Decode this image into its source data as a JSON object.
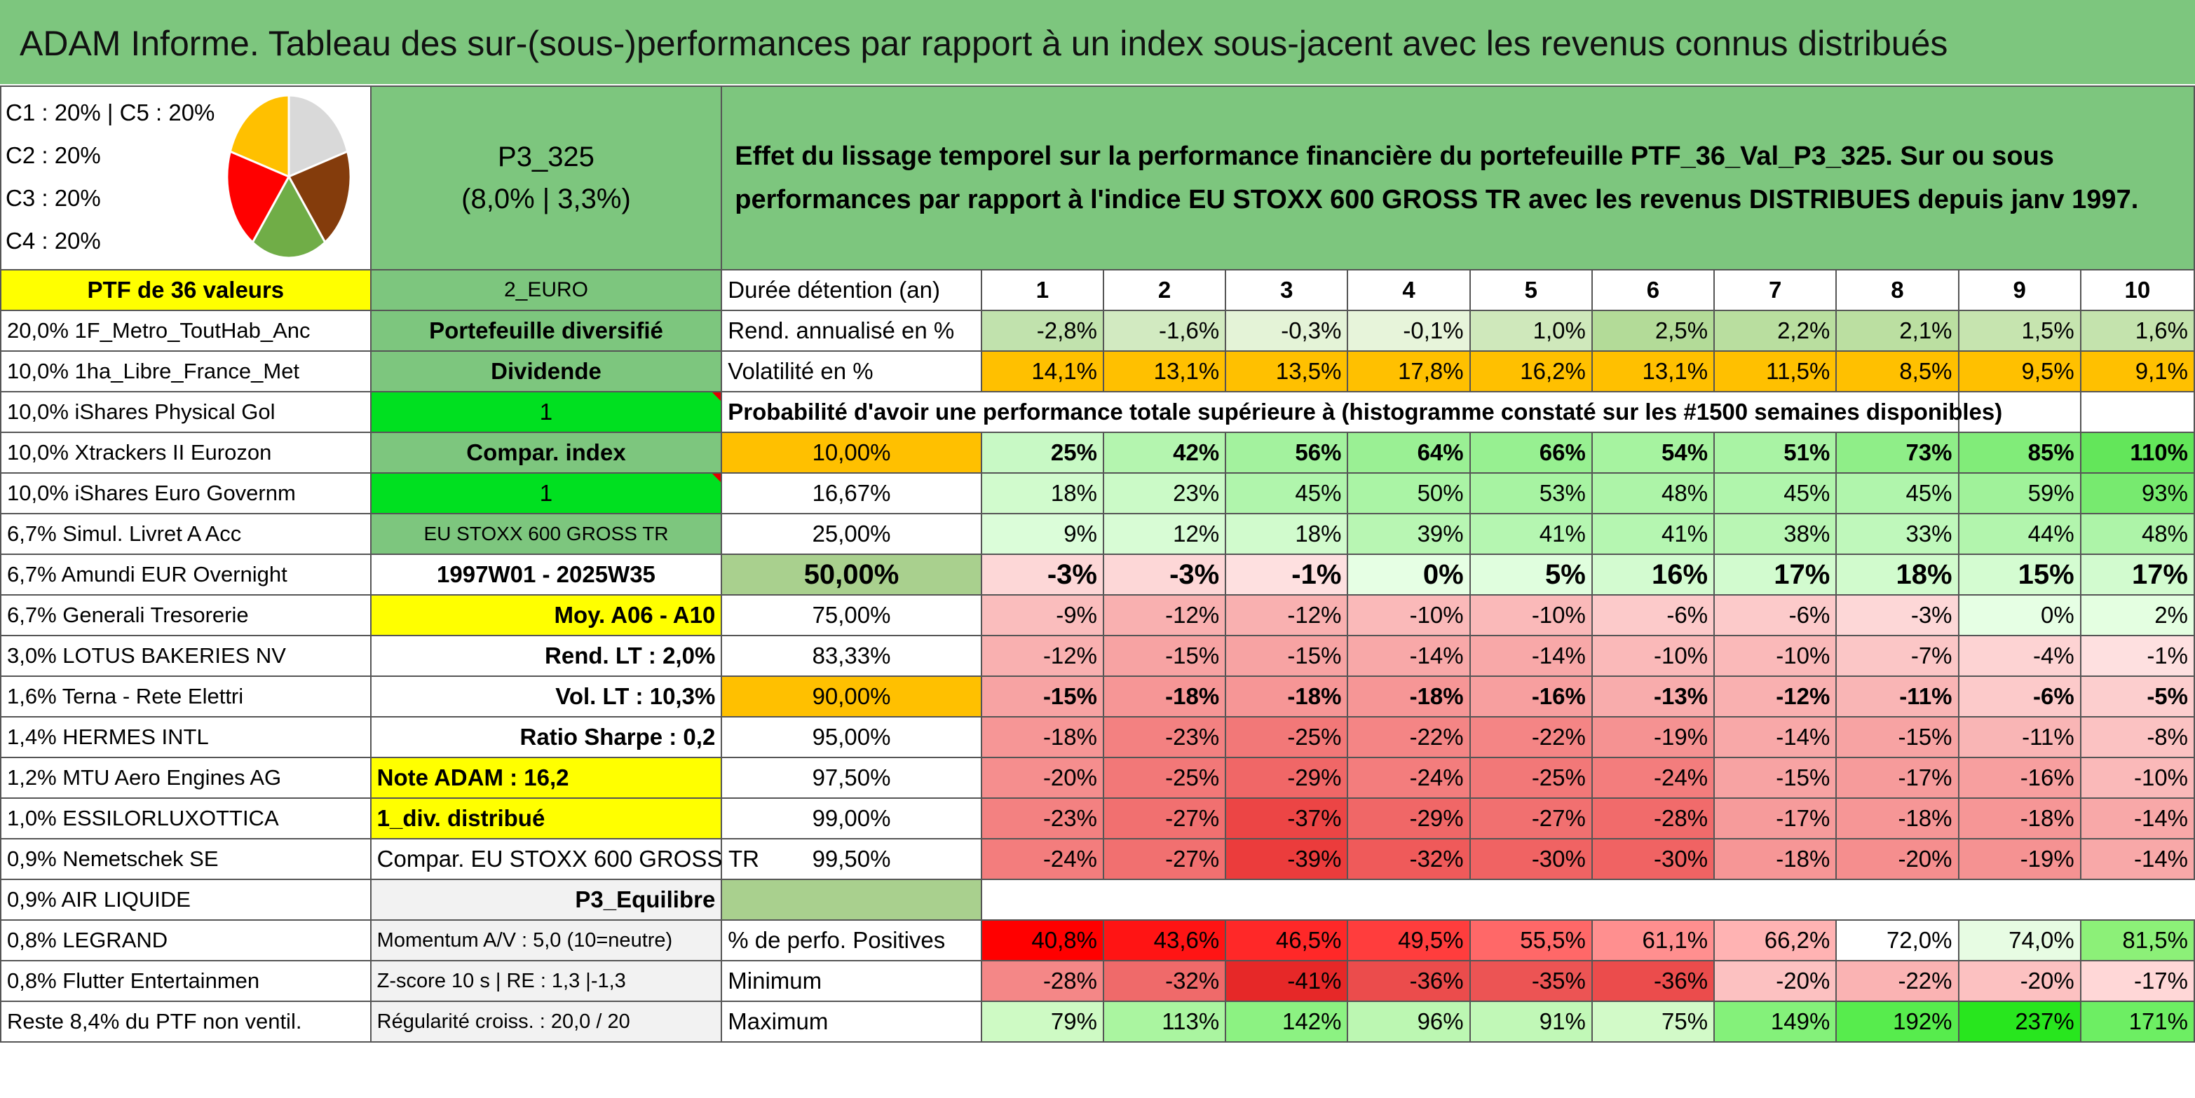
{
  "title": "ADAM Informe. Tableau des sur-(sous-)performances par rapport à un index sous-jacent avec les revenus connus distribués",
  "allocation": [
    "C1 : 20% | C5 : 20%",
    "C2 : 20%",
    "C3 : 20%",
    "C4 : 20%"
  ],
  "pie_slices": [
    {
      "label": "C1",
      "value": 20,
      "color": "#d9d9d9"
    },
    {
      "label": "C2",
      "value": 20,
      "color": "#843c0c"
    },
    {
      "label": "C3",
      "value": 20,
      "color": "#70ad47"
    },
    {
      "label": "C4",
      "value": 20,
      "color": "#ff0000"
    },
    {
      "label": "C5",
      "value": 20,
      "color": "#ffc000"
    }
  ],
  "portfolio": {
    "name": "P3_325",
    "params": "(8,0% | 3,3%)"
  },
  "description": "Effet du lissage temporel sur la performance financière du portefeuille PTF_36_Val_P3_325. Sur ou sous performances par rapport à l'indice EU STOXX 600 GROSS TR avec les revenus DISTRIBUES depuis janv 1997.",
  "ptf_label": "PTF de 36 valeurs",
  "currency": "2_EURO",
  "holdings": [
    "20,0% 1F_Metro_ToutHab_Anc",
    "10,0% 1ha_Libre_France_Met",
    "10,0% iShares Physical Gol",
    "10,0% Xtrackers II Eurozon",
    "10,0% iShares Euro Governm",
    "6,7% Simul. Livret A Acc",
    "6,7% Amundi EUR Overnight",
    "6,7% Generali Tresorerie",
    "3,0% LOTUS BAKERIES NV",
    "1,6% Terna - Rete Elettri",
    "1,4% HERMES INTL",
    "1,2% MTU Aero Engines AG",
    "1,0% ESSILORLUXOTTICA",
    "0,9% Nemetschek SE",
    "0,9% AIR LIQUIDE",
    "0,8% LEGRAND",
    "0,8% Flutter Entertainmen",
    "Reste 8,4% du PTF non ventil."
  ],
  "info": [
    "Portefeuille diversifié",
    "Dividende",
    "1",
    "Compar. index",
    "1",
    "EU STOXX 600 GROSS TR",
    "1997W01 - 2025W35",
    "Moy. A06 - A10",
    "Rend. LT : 2,0%",
    "Vol. LT : 10,3%",
    "Ratio Sharpe : 0,2",
    "Note ADAM : 16,2",
    "1_div. distribué",
    "Compar. EU STOXX 600 GROSS TR",
    "P3_Equilibre",
    "Momentum A/V : 5,0 (10=neutre)",
    "Z-score 10 s | RE : 1,3 |-1,3",
    "Régularité croiss. : 20,0 / 20"
  ],
  "duration_label": "Durée détention (an)",
  "years": [
    "1",
    "2",
    "3",
    "4",
    "5",
    "6",
    "7",
    "8",
    "9",
    "10"
  ],
  "rend_label": "Rend. annualisé en %",
  "rend": [
    "-2,8%",
    "-1,6%",
    "-0,3%",
    "-0,1%",
    "1,0%",
    "2,5%",
    "2,2%",
    "2,1%",
    "1,5%",
    "1,6%"
  ],
  "vol_label": "Volatilité en %",
  "vol": [
    "14,1%",
    "13,1%",
    "13,5%",
    "17,8%",
    "16,2%",
    "13,1%",
    "11,5%",
    "8,5%",
    "9,5%",
    "9,1%"
  ],
  "prob_header": "Probabilité d'avoir une performance totale supérieure à (histogramme constaté sur les #1500 semaines disponibles)",
  "percentiles": [
    {
      "p": "10,00%",
      "v": [
        "25%",
        "42%",
        "56%",
        "64%",
        "66%",
        "54%",
        "51%",
        "73%",
        "85%",
        "110%"
      ]
    },
    {
      "p": "16,67%",
      "v": [
        "18%",
        "23%",
        "45%",
        "50%",
        "53%",
        "48%",
        "45%",
        "45%",
        "59%",
        "93%"
      ]
    },
    {
      "p": "25,00%",
      "v": [
        "9%",
        "12%",
        "18%",
        "39%",
        "41%",
        "41%",
        "38%",
        "33%",
        "44%",
        "48%"
      ]
    },
    {
      "p": "50,00%",
      "v": [
        "-3%",
        "-3%",
        "-1%",
        "0%",
        "5%",
        "16%",
        "17%",
        "18%",
        "15%",
        "17%"
      ]
    },
    {
      "p": "75,00%",
      "v": [
        "-9%",
        "-12%",
        "-12%",
        "-10%",
        "-10%",
        "-6%",
        "-6%",
        "-3%",
        "0%",
        "2%"
      ]
    },
    {
      "p": "83,33%",
      "v": [
        "-12%",
        "-15%",
        "-15%",
        "-14%",
        "-14%",
        "-10%",
        "-10%",
        "-7%",
        "-4%",
        "-1%"
      ]
    },
    {
      "p": "90,00%",
      "v": [
        "-15%",
        "-18%",
        "-18%",
        "-18%",
        "-16%",
        "-13%",
        "-12%",
        "-11%",
        "-6%",
        "-5%"
      ]
    },
    {
      "p": "95,00%",
      "v": [
        "-18%",
        "-23%",
        "-25%",
        "-22%",
        "-22%",
        "-19%",
        "-14%",
        "-15%",
        "-11%",
        "-8%"
      ]
    },
    {
      "p": "97,50%",
      "v": [
        "-20%",
        "-25%",
        "-29%",
        "-24%",
        "-25%",
        "-24%",
        "-15%",
        "-17%",
        "-16%",
        "-10%"
      ]
    },
    {
      "p": "99,00%",
      "v": [
        "-23%",
        "-27%",
        "-37%",
        "-29%",
        "-27%",
        "-28%",
        "-17%",
        "-18%",
        "-18%",
        "-14%"
      ]
    },
    {
      "p": "99,50%",
      "v": [
        "-24%",
        "-27%",
        "-39%",
        "-32%",
        "-30%",
        "-30%",
        "-18%",
        "-20%",
        "-19%",
        "-14%"
      ]
    }
  ],
  "positives_label": "% de perfo. Positives",
  "positives": [
    "40,8%",
    "43,6%",
    "46,5%",
    "49,5%",
    "55,5%",
    "61,1%",
    "66,2%",
    "72,0%",
    "74,0%",
    "81,5%"
  ],
  "min_label": "Minimum",
  "min": [
    "-28%",
    "-32%",
    "-41%",
    "-36%",
    "-35%",
    "-36%",
    "-20%",
    "-22%",
    "-20%",
    "-17%"
  ],
  "max_label": "Maximum",
  "max": [
    "79%",
    "113%",
    "142%",
    "96%",
    "91%",
    "75%",
    "149%",
    "192%",
    "237%",
    "171%"
  ]
}
